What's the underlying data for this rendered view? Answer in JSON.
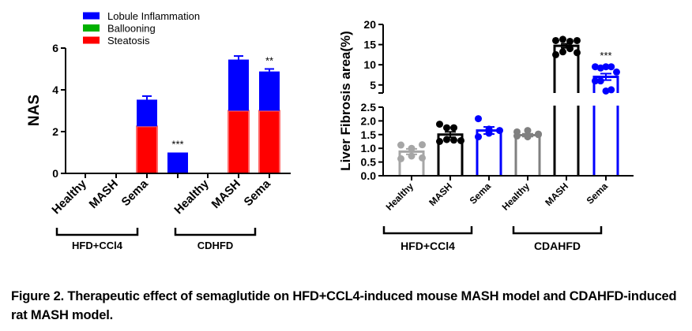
{
  "caption": "Figure 2. Therapeutic effect of semaglutide on HFD+CCL4-induced mouse MASH model and CDAHFD-induced rat MASH model.",
  "chart_data": [
    {
      "type": "bar",
      "stacked": true,
      "title": "",
      "ylabel": "NAS",
      "xlabel": "",
      "ylim": [
        0,
        6
      ],
      "yticks": [
        "0",
        "2",
        "4",
        "6"
      ],
      "categories": [
        "Healthy",
        "MASH",
        "Sema",
        "Healthy",
        "MASH",
        "Sema"
      ],
      "groups": [
        {
          "label": "HFD+CCl4",
          "categories": [
            0,
            1,
            2
          ]
        },
        {
          "label": "CDHFD",
          "categories": [
            3,
            4,
            5
          ]
        }
      ],
      "legend": {
        "position": "top-left",
        "entries": [
          {
            "name": "Lobule Inflammation",
            "color": "#0000ff"
          },
          {
            "name": "Ballooning",
            "color": "#00b000"
          },
          {
            "name": "Steatosis",
            "color": "#ff0000"
          }
        ]
      },
      "series": [
        {
          "name": "Steatosis",
          "color": "#ff0000",
          "values": [
            0,
            2.25,
            0,
            0,
            3.0,
            3.0
          ],
          "errors": [
            0,
            0.3,
            0,
            0,
            0,
            0
          ]
        },
        {
          "name": "Ballooning",
          "color": "#00b000",
          "values": [
            0,
            0,
            0,
            0,
            0,
            0
          ]
        },
        {
          "name": "Lobule Inflammation",
          "color": "#0000ff",
          "values": [
            0,
            1.28,
            1.0,
            0,
            2.45,
            1.88
          ],
          "errors": [
            0,
            0.17,
            0,
            0,
            0.17,
            0.12
          ]
        }
      ],
      "annotations": [
        {
          "category": 2,
          "text": "***"
        },
        {
          "category": 5,
          "text": "**"
        }
      ]
    },
    {
      "type": "bar",
      "title": "",
      "ylabel": "Liver Fibrosis area(%)",
      "xlabel": "",
      "broken_axis": true,
      "ylim_lower": [
        0,
        2.5
      ],
      "yticks_lower": [
        "0.0",
        "0.5",
        "1.0",
        "1.5",
        "2.0",
        "2.5"
      ],
      "ylim_upper": [
        3,
        20
      ],
      "yticks_upper": [
        "5",
        "10",
        "15",
        "20"
      ],
      "categories": [
        "Healthy",
        "MASH",
        "Sema",
        "Healthy",
        "MASH",
        "Sema"
      ],
      "groups": [
        {
          "label": "HFD+CCl4",
          "categories": [
            0,
            1,
            2
          ]
        },
        {
          "label": "CDAHFD",
          "categories": [
            3,
            4,
            5
          ]
        }
      ],
      "colors": [
        "#a6a6a6",
        "#000000",
        "#0000ff",
        "#808080",
        "#000000",
        "#0000ff"
      ],
      "values": [
        0.88,
        1.5,
        1.65,
        1.48,
        14.7,
        7.0
      ],
      "errors": [
        0.1,
        0.1,
        0.13,
        0.05,
        0.5,
        0.8
      ],
      "points": [
        [
          1.12,
          1.0,
          1.13,
          0.62,
          0.72,
          0.65
        ],
        [
          1.88,
          1.75,
          1.75,
          1.28,
          1.25,
          1.32,
          1.3
        ],
        [
          2.08,
          1.7,
          1.65,
          1.42,
          1.55
        ],
        [
          1.6,
          1.65,
          1.5,
          1.45,
          1.42,
          1.52
        ],
        [
          16.0,
          16.3,
          15.8,
          16.0,
          12.5,
          13.2,
          14.0,
          13.0
        ],
        [
          9.5,
          9.2,
          9.5,
          9.5,
          8.2,
          6.0,
          6.0,
          3.5,
          3.8
        ]
      ],
      "annotations": [
        {
          "category": 5,
          "text": "***"
        }
      ]
    }
  ]
}
